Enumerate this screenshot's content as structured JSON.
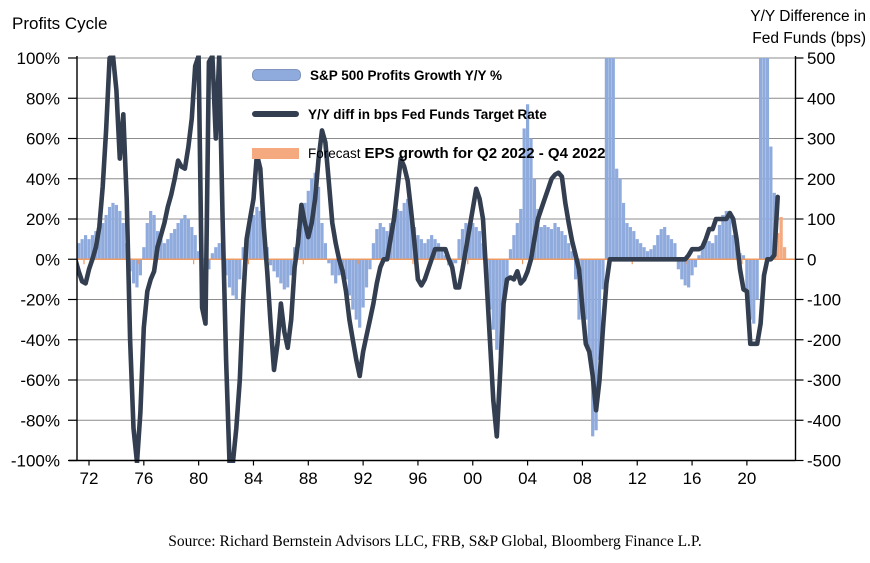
{
  "title": "Profits Cycle",
  "right_axis_title": {
    "line1": "Y/Y Difference in",
    "line2": "Fed Funds (bps)"
  },
  "legend": {
    "profits_growth_label": "S&P 500 Profits Growth Y/Y %",
    "fed_funds_label": "Y/Y diff in bps Fed Funds Target Rate",
    "forecast_label_normal": "Forecast",
    "forecast_label_bold": "EPS growth for Q2 2022 - Q4 2022"
  },
  "source": "Source: Richard Bernstein Advisors LLC, FRB, S&P Global, Bloomberg Finance L.P.",
  "colors": {
    "bar_blue": "#8FAADC",
    "line_navy": "#333F50",
    "forecast_orange": "#F4A97E",
    "zero_line_orange": "#ED9B63",
    "gridline": "#8c8c8c",
    "axis": "#000000"
  },
  "chart_data": {
    "type": "bar+line",
    "title": "Profits Cycle",
    "x_axis": {
      "labels": [
        "72",
        "76",
        "80",
        "84",
        "88",
        "92",
        "96",
        "00",
        "04",
        "08",
        "12",
        "16",
        "20"
      ],
      "tick_years": [
        1972,
        1976,
        1980,
        1984,
        1988,
        1992,
        1996,
        2000,
        2004,
        2008,
        2012,
        2016,
        2020
      ]
    },
    "left_axis": {
      "ticks": [
        "100%",
        "80%",
        "60%",
        "40%",
        "20%",
        "0%",
        "-20%",
        "-40%",
        "-60%",
        "-80%",
        "-100%"
      ],
      "min": -100,
      "max": 100,
      "unit": "%"
    },
    "right_axis": {
      "ticks": [
        "500",
        "400",
        "300",
        "200",
        "100",
        "0",
        "-100",
        "-200",
        "-300",
        "-400",
        "-500"
      ],
      "min": -500,
      "max": 500,
      "unit": "bps"
    },
    "series": [
      {
        "name": "S&P 500 Profits Growth Y/Y %",
        "type": "bar",
        "axis": "left",
        "unit": "%",
        "x_start": 1971.0,
        "x_step": 0.25,
        "values": [
          -13,
          8,
          10,
          12,
          10,
          12,
          14,
          16,
          18,
          22,
          26,
          28,
          27,
          24,
          18,
          8,
          -6,
          -12,
          -14,
          -8,
          6,
          18,
          24,
          22,
          14,
          10,
          8,
          10,
          13,
          15,
          18,
          20,
          22,
          20,
          16,
          12,
          4,
          -4,
          -8,
          -5,
          3,
          6,
          8,
          5,
          -8,
          -14,
          -18,
          -20,
          -10,
          6,
          12,
          18,
          22,
          26,
          24,
          18,
          6,
          -3,
          -6,
          -9,
          -12,
          -15,
          -14,
          -8,
          6,
          15,
          22,
          28,
          34,
          40,
          43,
          36,
          18,
          8,
          -2,
          -8,
          -12,
          -8,
          -6,
          -10,
          -18,
          -25,
          -30,
          -34,
          -24,
          -14,
          -5,
          8,
          15,
          18,
          16,
          14,
          18,
          22,
          25,
          24,
          28,
          30,
          24,
          16,
          12,
          10,
          8,
          10,
          12,
          10,
          8,
          5,
          2,
          -3,
          -5,
          -2,
          10,
          15,
          18,
          16,
          18,
          16,
          14,
          8,
          -12,
          -25,
          -35,
          -45,
          -48,
          -30,
          -12,
          5,
          12,
          18,
          25,
          65,
          77,
          60,
          40,
          25,
          16,
          17,
          16,
          15,
          18,
          16,
          14,
          12,
          8,
          4,
          -10,
          -30,
          -26,
          -30,
          -45,
          -88,
          -85,
          -50,
          -15,
          100,
          100,
          100,
          45,
          40,
          28,
          18,
          16,
          14,
          10,
          8,
          6,
          4,
          5,
          7,
          12,
          15,
          16,
          12,
          10,
          8,
          -5,
          -10,
          -13,
          -14,
          -8,
          -4,
          2,
          6,
          10,
          9,
          8,
          12,
          17,
          22,
          24,
          22,
          12,
          6,
          3,
          2,
          -15,
          -30,
          -32,
          -20,
          100,
          100,
          100,
          56,
          33
        ]
      },
      {
        "name": "Forecast EPS growth for Q2 2022 - Q4 2022",
        "type": "bar",
        "axis": "left",
        "unit": "%",
        "x_start": 2022.25,
        "x_step": 0.25,
        "values": [
          13,
          21,
          6
        ]
      },
      {
        "name": "Y/Y diff in bps Fed Funds Target Rate",
        "type": "line",
        "axis": "right",
        "unit": "bps",
        "x_start": 1971.0,
        "x_step": 0.25,
        "values": [
          0,
          -30,
          -55,
          -60,
          -25,
          0,
          30,
          80,
          180,
          320,
          500,
          560,
          420,
          250,
          360,
          150,
          -200,
          -420,
          -560,
          -380,
          -170,
          -80,
          -50,
          -30,
          30,
          60,
          90,
          130,
          160,
          200,
          245,
          230,
          225,
          280,
          350,
          480,
          560,
          -120,
          -160,
          490,
          560,
          300,
          560,
          100,
          -250,
          -560,
          -560,
          -420,
          -300,
          -100,
          50,
          100,
          150,
          260,
          225,
          80,
          -30,
          -160,
          -275,
          -210,
          -110,
          -180,
          -220,
          -150,
          -20,
          40,
          135,
          90,
          55,
          90,
          150,
          250,
          320,
          290,
          190,
          90,
          40,
          0,
          -30,
          -80,
          -150,
          -200,
          -250,
          -290,
          -230,
          -190,
          -150,
          -110,
          -60,
          -20,
          0,
          0,
          50,
          100,
          175,
          250,
          230,
          195,
          120,
          40,
          -50,
          -65,
          -50,
          -25,
          0,
          25,
          25,
          25,
          25,
          0,
          -20,
          -70,
          -70,
          -25,
          25,
          75,
          125,
          175,
          150,
          100,
          -50,
          -200,
          -350,
          -440,
          -280,
          -110,
          -50,
          -45,
          -50,
          -30,
          -60,
          -50,
          -30,
          0,
          50,
          100,
          125,
          150,
          175,
          200,
          210,
          215,
          205,
          140,
          90,
          45,
          10,
          -25,
          -120,
          -210,
          -230,
          -290,
          -375,
          -300,
          -170,
          -60,
          0,
          0,
          0,
          0,
          0,
          0,
          0,
          0,
          0,
          0,
          0,
          0,
          0,
          0,
          0,
          0,
          0,
          0,
          0,
          0,
          0,
          0,
          0,
          10,
          25,
          25,
          25,
          30,
          50,
          75,
          75,
          100,
          100,
          100,
          100,
          115,
          100,
          50,
          -25,
          -75,
          -80,
          -210,
          -210,
          -210,
          -160,
          -40,
          0,
          0,
          10,
          155
        ]
      }
    ],
    "notes": "Bar/line values beyond axis range are clipped at plot edges"
  }
}
